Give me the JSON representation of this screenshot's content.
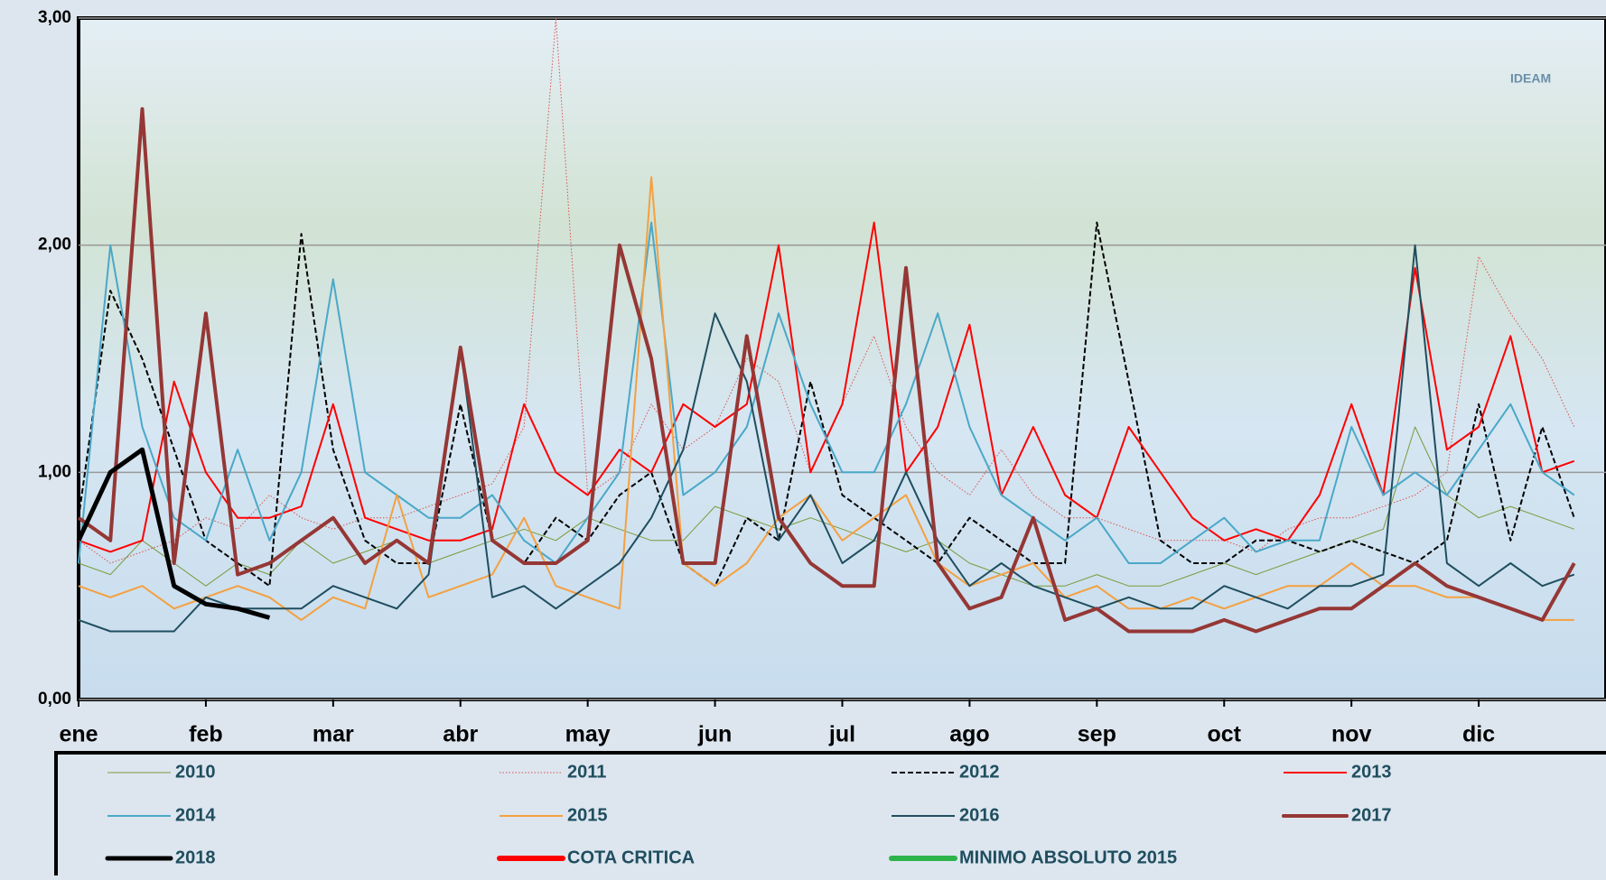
{
  "chart_data": {
    "type": "line",
    "logo": "IDEAM",
    "categories": [
      "ene",
      null,
      null,
      null,
      "feb",
      null,
      null,
      null,
      "mar",
      null,
      null,
      null,
      "abr",
      null,
      null,
      null,
      "may",
      null,
      null,
      null,
      "jun",
      null,
      null,
      null,
      "jul",
      null,
      null,
      null,
      "ago",
      null,
      null,
      null,
      "sep",
      null,
      null,
      null,
      "oct",
      null,
      null,
      null,
      "nov",
      null,
      null,
      null,
      "dic",
      null,
      null,
      null
    ],
    "ylim": [
      0,
      3
    ],
    "yticks": [
      {
        "value": 0,
        "label": "0,00"
      },
      {
        "value": 1,
        "label": "1,00"
      },
      {
        "value": 2,
        "label": "2,00"
      },
      {
        "value": 3,
        "label": "3,00"
      }
    ],
    "grid": true,
    "series": [
      {
        "name": "2010",
        "color": "#7a9a3a",
        "width": 1,
        "dash": "solid",
        "values": [
          0.6,
          0.55,
          0.7,
          0.6,
          0.5,
          0.6,
          0.55,
          0.7,
          0.6,
          0.65,
          0.7,
          0.6,
          0.65,
          0.7,
          0.75,
          0.7,
          0.8,
          0.75,
          0.7,
          0.7,
          0.85,
          0.8,
          0.75,
          0.8,
          0.75,
          0.7,
          0.65,
          0.7,
          0.6,
          0.55,
          0.5,
          0.5,
          0.55,
          0.5,
          0.5,
          0.55,
          0.6,
          0.55,
          0.6,
          0.65,
          0.7,
          0.75,
          1.2,
          0.9,
          0.8,
          0.85,
          0.8,
          0.75
        ]
      },
      {
        "name": "2011",
        "color": "#d9534f",
        "width": 1,
        "dash": "dotted",
        "values": [
          0.7,
          0.6,
          0.65,
          0.7,
          0.8,
          0.75,
          0.9,
          0.8,
          0.75,
          0.8,
          0.8,
          0.85,
          0.9,
          0.95,
          1.2,
          3.0,
          0.9,
          1.0,
          1.3,
          1.1,
          1.2,
          1.5,
          1.4,
          1.0,
          1.3,
          1.6,
          1.2,
          1.0,
          0.9,
          1.1,
          0.9,
          0.8,
          0.8,
          0.75,
          0.7,
          0.7,
          0.7,
          0.65,
          0.75,
          0.8,
          0.8,
          0.85,
          0.9,
          1.0,
          1.95,
          1.7,
          1.5,
          1.2
        ]
      },
      {
        "name": "2012",
        "color": "#000000",
        "width": 2,
        "dash": "dashed",
        "values": [
          0.8,
          1.8,
          1.5,
          1.1,
          0.7,
          0.6,
          0.5,
          2.05,
          1.1,
          0.7,
          0.6,
          0.6,
          1.3,
          0.7,
          0.6,
          0.8,
          0.7,
          0.9,
          1.0,
          0.6,
          0.5,
          0.8,
          0.7,
          1.4,
          0.9,
          0.8,
          0.7,
          0.6,
          0.8,
          0.7,
          0.6,
          0.6,
          2.1,
          1.4,
          0.7,
          0.6,
          0.6,
          0.7,
          0.7,
          0.65,
          0.7,
          0.65,
          0.6,
          0.7,
          1.3,
          0.7,
          1.2,
          0.8
        ]
      },
      {
        "name": "2013",
        "color": "#ff0000",
        "width": 2,
        "dash": "solid",
        "values": [
          0.7,
          0.65,
          0.7,
          1.4,
          1.0,
          0.8,
          0.8,
          0.85,
          1.3,
          0.8,
          0.75,
          0.7,
          0.7,
          0.75,
          1.3,
          1.0,
          0.9,
          1.1,
          1.0,
          1.3,
          1.2,
          1.3,
          2.0,
          1.0,
          1.3,
          2.1,
          1.0,
          1.2,
          1.65,
          0.9,
          1.2,
          0.9,
          0.8,
          1.2,
          1.0,
          0.8,
          0.7,
          0.75,
          0.7,
          0.9,
          1.3,
          0.9,
          1.9,
          1.1,
          1.2,
          1.6,
          1.0,
          1.05
        ]
      },
      {
        "name": "2014",
        "color": "#4aa8c8",
        "width": 2,
        "dash": "solid",
        "values": [
          0.6,
          2.0,
          1.2,
          0.8,
          0.7,
          1.1,
          0.7,
          1.0,
          1.85,
          1.0,
          0.9,
          0.8,
          0.8,
          0.9,
          0.7,
          0.6,
          0.8,
          1.0,
          2.1,
          0.9,
          1.0,
          1.2,
          1.7,
          1.3,
          1.0,
          1.0,
          1.3,
          1.7,
          1.2,
          0.9,
          0.8,
          0.7,
          0.8,
          0.6,
          0.6,
          0.7,
          0.8,
          0.65,
          0.7,
          0.7,
          1.2,
          0.9,
          1.0,
          0.9,
          1.1,
          1.3,
          1.0,
          0.9
        ]
      },
      {
        "name": "2015",
        "color": "#f4a040",
        "width": 2,
        "dash": "solid",
        "values": [
          0.5,
          0.45,
          0.5,
          0.4,
          0.45,
          0.5,
          0.45,
          0.35,
          0.45,
          0.4,
          0.9,
          0.45,
          0.5,
          0.55,
          0.8,
          0.5,
          0.45,
          0.4,
          2.3,
          0.6,
          0.5,
          0.6,
          0.8,
          0.9,
          0.7,
          0.8,
          0.9,
          0.6,
          0.5,
          0.55,
          0.6,
          0.45,
          0.5,
          0.4,
          0.4,
          0.45,
          0.4,
          0.45,
          0.5,
          0.5,
          0.6,
          0.5,
          0.5,
          0.45,
          0.45,
          0.4,
          0.35,
          0.35
        ]
      },
      {
        "name": "2016",
        "color": "#1f4e5f",
        "width": 2,
        "dash": "solid",
        "values": [
          0.35,
          0.3,
          0.3,
          0.3,
          0.45,
          0.4,
          0.4,
          0.4,
          0.5,
          0.45,
          0.4,
          0.55,
          1.55,
          0.45,
          0.5,
          0.4,
          0.5,
          0.6,
          0.8,
          1.1,
          1.7,
          1.4,
          0.7,
          0.9,
          0.6,
          0.7,
          1.0,
          0.7,
          0.5,
          0.6,
          0.5,
          0.45,
          0.4,
          0.45,
          0.4,
          0.4,
          0.5,
          0.45,
          0.4,
          0.5,
          0.5,
          0.55,
          2.0,
          0.6,
          0.5,
          0.6,
          0.5,
          0.55
        ]
      },
      {
        "name": "2017",
        "color": "#953735",
        "width": 4,
        "dash": "solid",
        "values": [
          0.8,
          0.7,
          2.6,
          0.6,
          1.7,
          0.55,
          0.6,
          0.7,
          0.8,
          0.6,
          0.7,
          0.6,
          1.55,
          0.7,
          0.6,
          0.6,
          0.7,
          2.0,
          1.5,
          0.6,
          0.6,
          1.6,
          0.8,
          0.6,
          0.5,
          0.5,
          1.9,
          0.6,
          0.4,
          0.45,
          0.8,
          0.35,
          0.4,
          0.3,
          0.3,
          0.3,
          0.35,
          0.3,
          0.35,
          0.4,
          0.4,
          0.5,
          0.6,
          0.5,
          0.45,
          0.4,
          0.35,
          0.6
        ]
      },
      {
        "name": "2018",
        "color": "#000000",
        "width": 5,
        "dash": "solid",
        "values": [
          0.7,
          1.0,
          1.1,
          0.5,
          0.42,
          0.4,
          0.36,
          null,
          null,
          null,
          null,
          null,
          null,
          null,
          null,
          null,
          null,
          null,
          null,
          null,
          null,
          null,
          null,
          null,
          null,
          null,
          null,
          null,
          null,
          null,
          null,
          null,
          null,
          null,
          null,
          null,
          null,
          null,
          null,
          null,
          null,
          null,
          null,
          null,
          null,
          null,
          null,
          null
        ]
      },
      {
        "name": "COTA CRITICA",
        "color": "#ff0000",
        "width": 6,
        "dash": "solid",
        "values": [
          null,
          null,
          null,
          null,
          null,
          null,
          null,
          null,
          null,
          null,
          null,
          null,
          null,
          null,
          null,
          null,
          null,
          null,
          null,
          null,
          null,
          null,
          null,
          null,
          null,
          null,
          null,
          null,
          null,
          null,
          null,
          null,
          null,
          null,
          null,
          null,
          null,
          null,
          null,
          null,
          null,
          null,
          null,
          null,
          null,
          null,
          null,
          null
        ]
      },
      {
        "name": "MINIMO ABSOLUTO 2015",
        "color": "#2db34a",
        "width": 6,
        "dash": "solid",
        "values": [
          null,
          null,
          null,
          null,
          null,
          null,
          null,
          null,
          null,
          null,
          null,
          null,
          null,
          null,
          null,
          null,
          null,
          null,
          null,
          null,
          null,
          null,
          null,
          null,
          null,
          null,
          null,
          null,
          null,
          null,
          null,
          null,
          null,
          null,
          null,
          null,
          null,
          null,
          null,
          null,
          null,
          null,
          null,
          null,
          null,
          null,
          null,
          null
        ]
      }
    ]
  }
}
